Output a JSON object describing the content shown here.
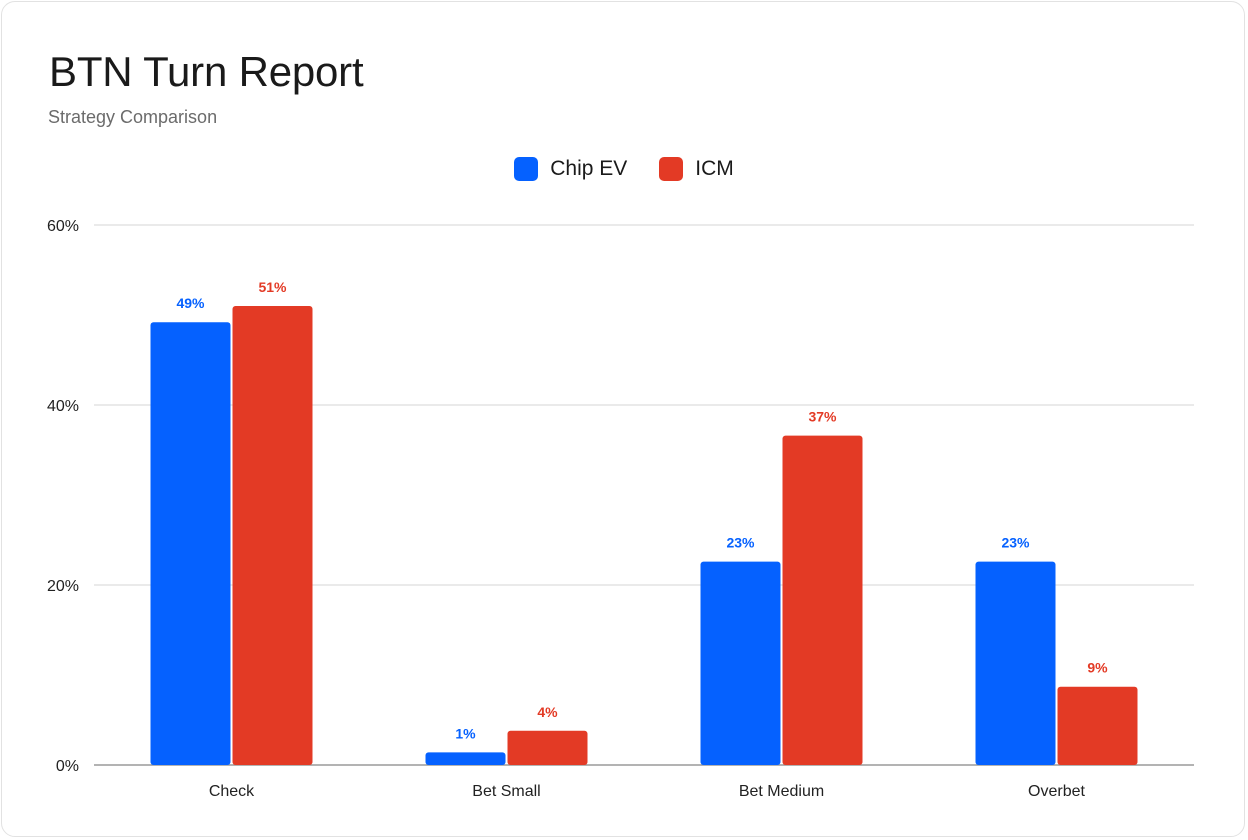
{
  "header": {
    "title": "BTN Turn Report",
    "subtitle": "Strategy Comparison"
  },
  "colors": {
    "chip_ev": "#0561ff",
    "icm": "#e33a25",
    "grid": "#e4e4e4",
    "axis": "#9a9a9a",
    "tick_text": "#222222"
  },
  "chart_data": {
    "type": "bar",
    "title": "BTN Turn Report",
    "subtitle": "Strategy Comparison",
    "categories": [
      "Check",
      "Bet Small",
      "Bet Medium",
      "Overbet"
    ],
    "series": [
      {
        "name": "Chip EV",
        "values": [
          49.2,
          1.4,
          22.6,
          22.6
        ],
        "labels": [
          "49%",
          "1%",
          "23%",
          "23%"
        ]
      },
      {
        "name": "ICM",
        "values": [
          51.0,
          3.8,
          36.6,
          8.7
        ],
        "labels": [
          "51%",
          "4%",
          "37%",
          "9%"
        ]
      }
    ],
    "y_ticks": [
      "0%",
      "20%",
      "40%",
      "60%"
    ],
    "y_tick_values": [
      0,
      20,
      40,
      60
    ],
    "ylim": [
      0,
      60
    ],
    "xlabel": "",
    "ylabel": "",
    "grid": true,
    "legend_position": "top-center"
  }
}
